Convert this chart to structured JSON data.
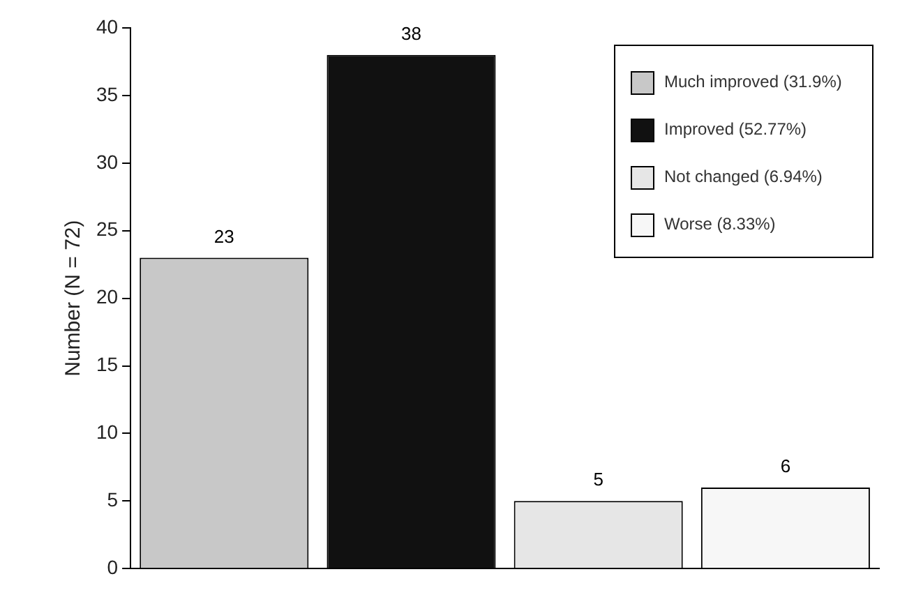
{
  "chart_data": {
    "type": "bar",
    "ylabel": "Number (N = 72)",
    "categories": [
      null,
      null,
      null,
      null
    ],
    "series": [
      {
        "name": "Much improved (31.9%)",
        "color": "#c8c8c8",
        "values": [
          23,
          null,
          null,
          null
        ]
      },
      {
        "name": "Improved (52.77%)",
        "color": "#111111",
        "values": [
          null,
          38,
          null,
          null
        ]
      },
      {
        "name": "Not changed (6.94%)",
        "color": "#e6e6e6",
        "values": [
          null,
          null,
          5,
          null
        ]
      },
      {
        "name": "Worse (8.33%)",
        "color": "#f7f7f7",
        "values": [
          null,
          null,
          null,
          6
        ]
      }
    ],
    "ylim": [
      0,
      40
    ],
    "yticks": [
      0,
      5,
      10,
      15,
      20,
      25,
      30,
      35,
      40
    ],
    "grid": false,
    "legend": "top right",
    "data_labels": true
  }
}
